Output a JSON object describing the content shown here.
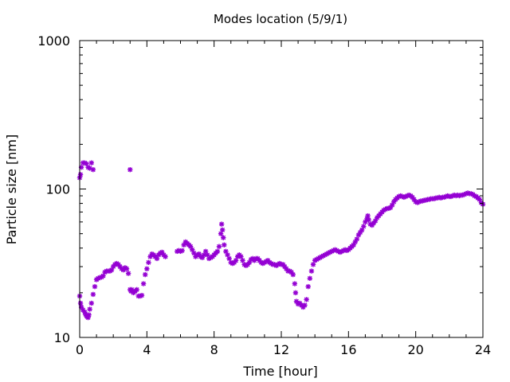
{
  "chart_data": {
    "type": "scatter",
    "title": "Modes location (5/9/1)",
    "xlabel": "Time [hour]",
    "ylabel": "Particle size [nm]",
    "xlim": [
      0,
      24
    ],
    "ylim": [
      10,
      1000
    ],
    "yscale": "log",
    "grid": false,
    "legend": "none",
    "marker_color": "#9400d3",
    "x_ticks": [
      0,
      4,
      8,
      12,
      16,
      20,
      24
    ],
    "x_tick_labels": [
      "0",
      "4",
      "8",
      "12",
      "16",
      "20",
      "24"
    ],
    "y_ticks": [
      10,
      100,
      1000
    ],
    "y_tick_labels": [
      "10",
      "100",
      "1000"
    ],
    "series": [
      {
        "points": [
          [
            0.0,
            119
          ],
          [
            0.05,
            125
          ],
          [
            0.1,
            140
          ],
          [
            0.2,
            150
          ],
          [
            0.3,
            150
          ],
          [
            0.4,
            148
          ],
          [
            0.5,
            140
          ],
          [
            0.6,
            138
          ],
          [
            0.7,
            150
          ],
          [
            0.8,
            135
          ],
          [
            0.0,
            19
          ],
          [
            0.05,
            17
          ],
          [
            0.1,
            16
          ],
          [
            0.2,
            15.3
          ],
          [
            0.3,
            14.8
          ],
          [
            0.35,
            14.3
          ],
          [
            0.4,
            14
          ],
          [
            0.45,
            13.8
          ],
          [
            0.5,
            13.6
          ],
          [
            0.55,
            14.2
          ],
          [
            0.6,
            15.5
          ],
          [
            0.7,
            17
          ],
          [
            0.8,
            19.5
          ],
          [
            0.9,
            22
          ],
          [
            1.0,
            24.5
          ],
          [
            1.1,
            25
          ],
          [
            1.2,
            25.3
          ],
          [
            1.3,
            25.5
          ],
          [
            1.4,
            26
          ],
          [
            1.5,
            27.5
          ],
          [
            1.6,
            28
          ],
          [
            1.7,
            28
          ],
          [
            1.8,
            28
          ],
          [
            1.9,
            28.5
          ],
          [
            2.0,
            30
          ],
          [
            2.1,
            31
          ],
          [
            2.2,
            31.5
          ],
          [
            2.3,
            31
          ],
          [
            2.4,
            30
          ],
          [
            2.5,
            29
          ],
          [
            2.6,
            28.5
          ],
          [
            2.7,
            29.5
          ],
          [
            2.8,
            29
          ],
          [
            2.9,
            27
          ],
          [
            3.0,
            21
          ],
          [
            3.05,
            20.5
          ],
          [
            3.1,
            21
          ],
          [
            3.2,
            20
          ],
          [
            3.3,
            20.5
          ],
          [
            3.4,
            21
          ],
          [
            3.5,
            19
          ],
          [
            3.6,
            19
          ],
          [
            3.7,
            19.2
          ],
          [
            3.8,
            23
          ],
          [
            3.9,
            26.5
          ],
          [
            4.0,
            29
          ],
          [
            4.1,
            32
          ],
          [
            4.2,
            35
          ],
          [
            4.3,
            36.5
          ],
          [
            4.4,
            36
          ],
          [
            4.5,
            35
          ],
          [
            4.6,
            34
          ],
          [
            4.7,
            36
          ],
          [
            4.8,
            37
          ],
          [
            4.9,
            37.5
          ],
          [
            5.0,
            36
          ],
          [
            5.1,
            35
          ],
          [
            3.0,
            135
          ],
          [
            5.8,
            38
          ],
          [
            5.9,
            38.5
          ],
          [
            6.0,
            38
          ],
          [
            6.1,
            38.5
          ],
          [
            6.2,
            42
          ],
          [
            6.3,
            44
          ],
          [
            6.4,
            43
          ],
          [
            6.5,
            42
          ],
          [
            6.6,
            41
          ],
          [
            6.7,
            39
          ],
          [
            6.8,
            37
          ],
          [
            6.9,
            35
          ],
          [
            7.0,
            36
          ],
          [
            7.1,
            36.5
          ],
          [
            7.2,
            35
          ],
          [
            7.3,
            34.5
          ],
          [
            7.4,
            36
          ],
          [
            7.5,
            38
          ],
          [
            7.6,
            36
          ],
          [
            7.7,
            34
          ],
          [
            7.8,
            34.5
          ],
          [
            7.9,
            35
          ],
          [
            8.0,
            36
          ],
          [
            8.1,
            37
          ],
          [
            8.2,
            38
          ],
          [
            8.3,
            41
          ],
          [
            8.4,
            50
          ],
          [
            8.45,
            58
          ],
          [
            8.5,
            53
          ],
          [
            8.55,
            47
          ],
          [
            8.6,
            42
          ],
          [
            8.7,
            38
          ],
          [
            8.8,
            36
          ],
          [
            8.9,
            34
          ],
          [
            9.0,
            32
          ],
          [
            9.1,
            31.5
          ],
          [
            9.2,
            32
          ],
          [
            9.3,
            33
          ],
          [
            9.4,
            35
          ],
          [
            9.5,
            36
          ],
          [
            9.6,
            35
          ],
          [
            9.7,
            33
          ],
          [
            9.8,
            31
          ],
          [
            9.9,
            30.5
          ],
          [
            10.0,
            31
          ],
          [
            10.1,
            32
          ],
          [
            10.2,
            33.5
          ],
          [
            10.3,
            34
          ],
          [
            10.4,
            33
          ],
          [
            10.5,
            34
          ],
          [
            10.6,
            34
          ],
          [
            10.7,
            33
          ],
          [
            10.8,
            32
          ],
          [
            10.9,
            31.5
          ],
          [
            11.0,
            32
          ],
          [
            11.1,
            32.5
          ],
          [
            11.2,
            33
          ],
          [
            11.3,
            32
          ],
          [
            11.4,
            31.5
          ],
          [
            11.5,
            31
          ],
          [
            11.6,
            31
          ],
          [
            11.7,
            30.5
          ],
          [
            11.8,
            31
          ],
          [
            11.9,
            31.5
          ],
          [
            12.0,
            31
          ],
          [
            12.1,
            31
          ],
          [
            12.2,
            30
          ],
          [
            12.3,
            29
          ],
          [
            12.4,
            28
          ],
          [
            12.5,
            28
          ],
          [
            12.6,
            27.5
          ],
          [
            12.7,
            26.5
          ],
          [
            12.8,
            23
          ],
          [
            12.85,
            20
          ],
          [
            12.9,
            17.5
          ],
          [
            13.0,
            16.8
          ],
          [
            13.1,
            17
          ],
          [
            13.2,
            16.5
          ],
          [
            13.3,
            16
          ],
          [
            13.4,
            16.5
          ],
          [
            13.5,
            18
          ],
          [
            13.6,
            22
          ],
          [
            13.7,
            25
          ],
          [
            13.8,
            28
          ],
          [
            13.9,
            31
          ],
          [
            14.0,
            33
          ],
          [
            14.1,
            33.5
          ],
          [
            14.2,
            34
          ],
          [
            14.3,
            34.5
          ],
          [
            14.4,
            35
          ],
          [
            14.5,
            35.5
          ],
          [
            14.6,
            36
          ],
          [
            14.7,
            36.5
          ],
          [
            14.8,
            37
          ],
          [
            14.9,
            37.5
          ],
          [
            15.0,
            38
          ],
          [
            15.1,
            38.5
          ],
          [
            15.2,
            39
          ],
          [
            15.3,
            38.5
          ],
          [
            15.4,
            38
          ],
          [
            15.5,
            37.5
          ],
          [
            15.6,
            38
          ],
          [
            15.7,
            38.5
          ],
          [
            15.8,
            39
          ],
          [
            15.9,
            38.5
          ],
          [
            16.0,
            39
          ],
          [
            16.1,
            40
          ],
          [
            16.2,
            41
          ],
          [
            16.3,
            42
          ],
          [
            16.4,
            44
          ],
          [
            16.5,
            46
          ],
          [
            16.6,
            49
          ],
          [
            16.7,
            51
          ],
          [
            16.8,
            53
          ],
          [
            16.9,
            56
          ],
          [
            17.0,
            60
          ],
          [
            17.1,
            63
          ],
          [
            17.15,
            66
          ],
          [
            17.2,
            62
          ],
          [
            17.3,
            58
          ],
          [
            17.4,
            57
          ],
          [
            17.5,
            59
          ],
          [
            17.6,
            61
          ],
          [
            17.7,
            64
          ],
          [
            17.8,
            66
          ],
          [
            17.9,
            68
          ],
          [
            18.0,
            70
          ],
          [
            18.1,
            72
          ],
          [
            18.2,
            73
          ],
          [
            18.3,
            74
          ],
          [
            18.4,
            74
          ],
          [
            18.5,
            75
          ],
          [
            18.6,
            78
          ],
          [
            18.7,
            82
          ],
          [
            18.8,
            85
          ],
          [
            18.9,
            87
          ],
          [
            19.0,
            89
          ],
          [
            19.1,
            90
          ],
          [
            19.2,
            89
          ],
          [
            19.3,
            88
          ],
          [
            19.4,
            89
          ],
          [
            19.5,
            90
          ],
          [
            19.6,
            91
          ],
          [
            19.7,
            90
          ],
          [
            19.8,
            88
          ],
          [
            19.9,
            85
          ],
          [
            20.0,
            82
          ],
          [
            20.1,
            81
          ],
          [
            20.2,
            82
          ],
          [
            20.3,
            83
          ],
          [
            20.4,
            83
          ],
          [
            20.5,
            84
          ],
          [
            20.6,
            84
          ],
          [
            20.7,
            85
          ],
          [
            20.8,
            85
          ],
          [
            20.9,
            86
          ],
          [
            21.0,
            86
          ],
          [
            21.1,
            86
          ],
          [
            21.2,
            87
          ],
          [
            21.3,
            87
          ],
          [
            21.4,
            88
          ],
          [
            21.5,
            87
          ],
          [
            21.6,
            88
          ],
          [
            21.7,
            88
          ],
          [
            21.8,
            89
          ],
          [
            21.9,
            90
          ],
          [
            22.0,
            89
          ],
          [
            22.1,
            89
          ],
          [
            22.2,
            90
          ],
          [
            22.3,
            91
          ],
          [
            22.4,
            90
          ],
          [
            22.5,
            91
          ],
          [
            22.6,
            90
          ],
          [
            22.7,
            91
          ],
          [
            22.8,
            91
          ],
          [
            22.9,
            92
          ],
          [
            23.0,
            93
          ],
          [
            23.1,
            94
          ],
          [
            23.2,
            93
          ],
          [
            23.3,
            93
          ],
          [
            23.4,
            92
          ],
          [
            23.5,
            90
          ],
          [
            23.6,
            89
          ],
          [
            23.7,
            87
          ],
          [
            23.8,
            85
          ],
          [
            23.9,
            81
          ],
          [
            24.0,
            79
          ]
        ]
      }
    ]
  }
}
